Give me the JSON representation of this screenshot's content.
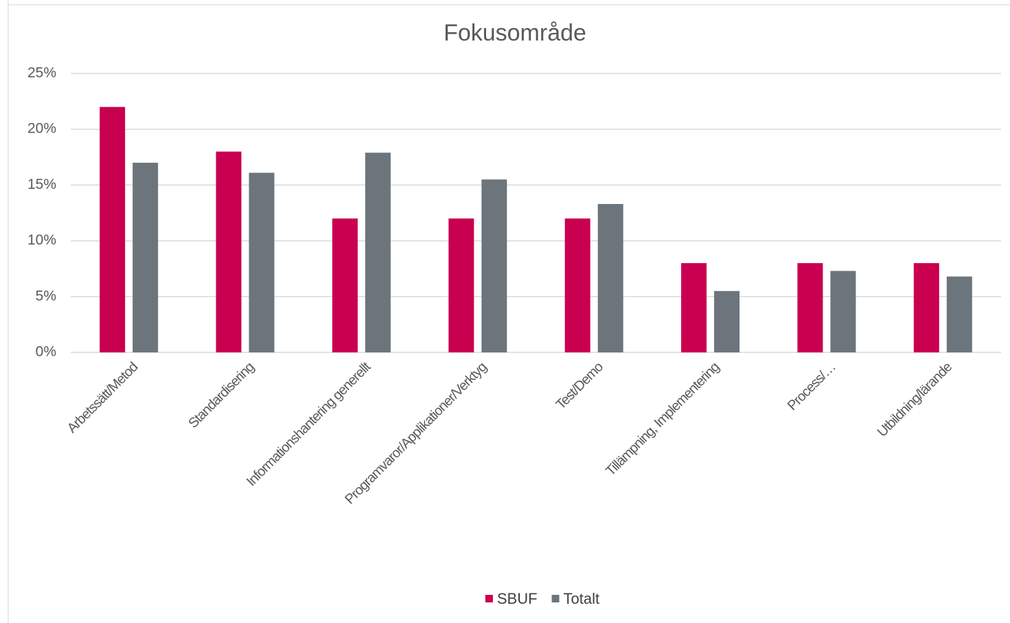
{
  "chart_data": {
    "type": "bar",
    "title": "Fokusområde",
    "categories": [
      "Arbetssätt/Metod",
      "Standardisering",
      "Informationshantering generellt",
      "Programvaror/Applikationer/Verktyg",
      "Test/Demo",
      "Tillämpning, Implementering",
      "Process/…",
      "Utbildning/lärande"
    ],
    "series": [
      {
        "name": "SBUF",
        "color": "#c8004f",
        "values": [
          22,
          18,
          12,
          12,
          12,
          8,
          8,
          8
        ]
      },
      {
        "name": "Totalt",
        "color": "#6b757b",
        "values": [
          17,
          16.1,
          17.9,
          15.5,
          13.3,
          5.5,
          7.3,
          6.8
        ]
      }
    ],
    "ylim": [
      0,
      25
    ],
    "yticks": [
      {
        "value": 0,
        "label": "0%"
      },
      {
        "value": 5,
        "label": "5%"
      },
      {
        "value": 10,
        "label": "10%"
      },
      {
        "value": 15,
        "label": "15%"
      },
      {
        "value": 20,
        "label": "20%"
      },
      {
        "value": 25,
        "label": "25%"
      }
    ],
    "grid": true,
    "legend": "bottom"
  }
}
